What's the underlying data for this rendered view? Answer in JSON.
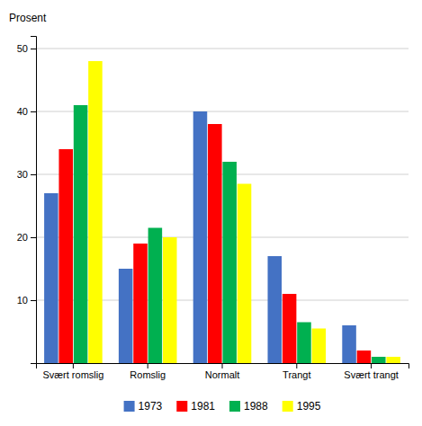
{
  "chart_data": {
    "type": "bar",
    "ylabel": "Prosent",
    "categories": [
      "Svært romslig",
      "Romslig",
      "Normalt",
      "Trangt",
      "Svært trangt"
    ],
    "series": [
      {
        "name": "1973",
        "color": "#4472C4",
        "values": [
          27,
          15,
          40,
          17,
          6
        ]
      },
      {
        "name": "1981",
        "color": "#FF0000",
        "values": [
          34,
          19,
          38,
          11,
          2
        ]
      },
      {
        "name": "1988",
        "color": "#00B050",
        "values": [
          41,
          21.5,
          32,
          6.5,
          1
        ]
      },
      {
        "name": "1995",
        "color": "#FFFF00",
        "values": [
          48,
          20,
          28.5,
          5.5,
          1
        ]
      }
    ],
    "ylim": [
      0,
      52
    ],
    "yticks": [
      10,
      20,
      30,
      40,
      50
    ],
    "grid": true,
    "legend": "bottom"
  }
}
